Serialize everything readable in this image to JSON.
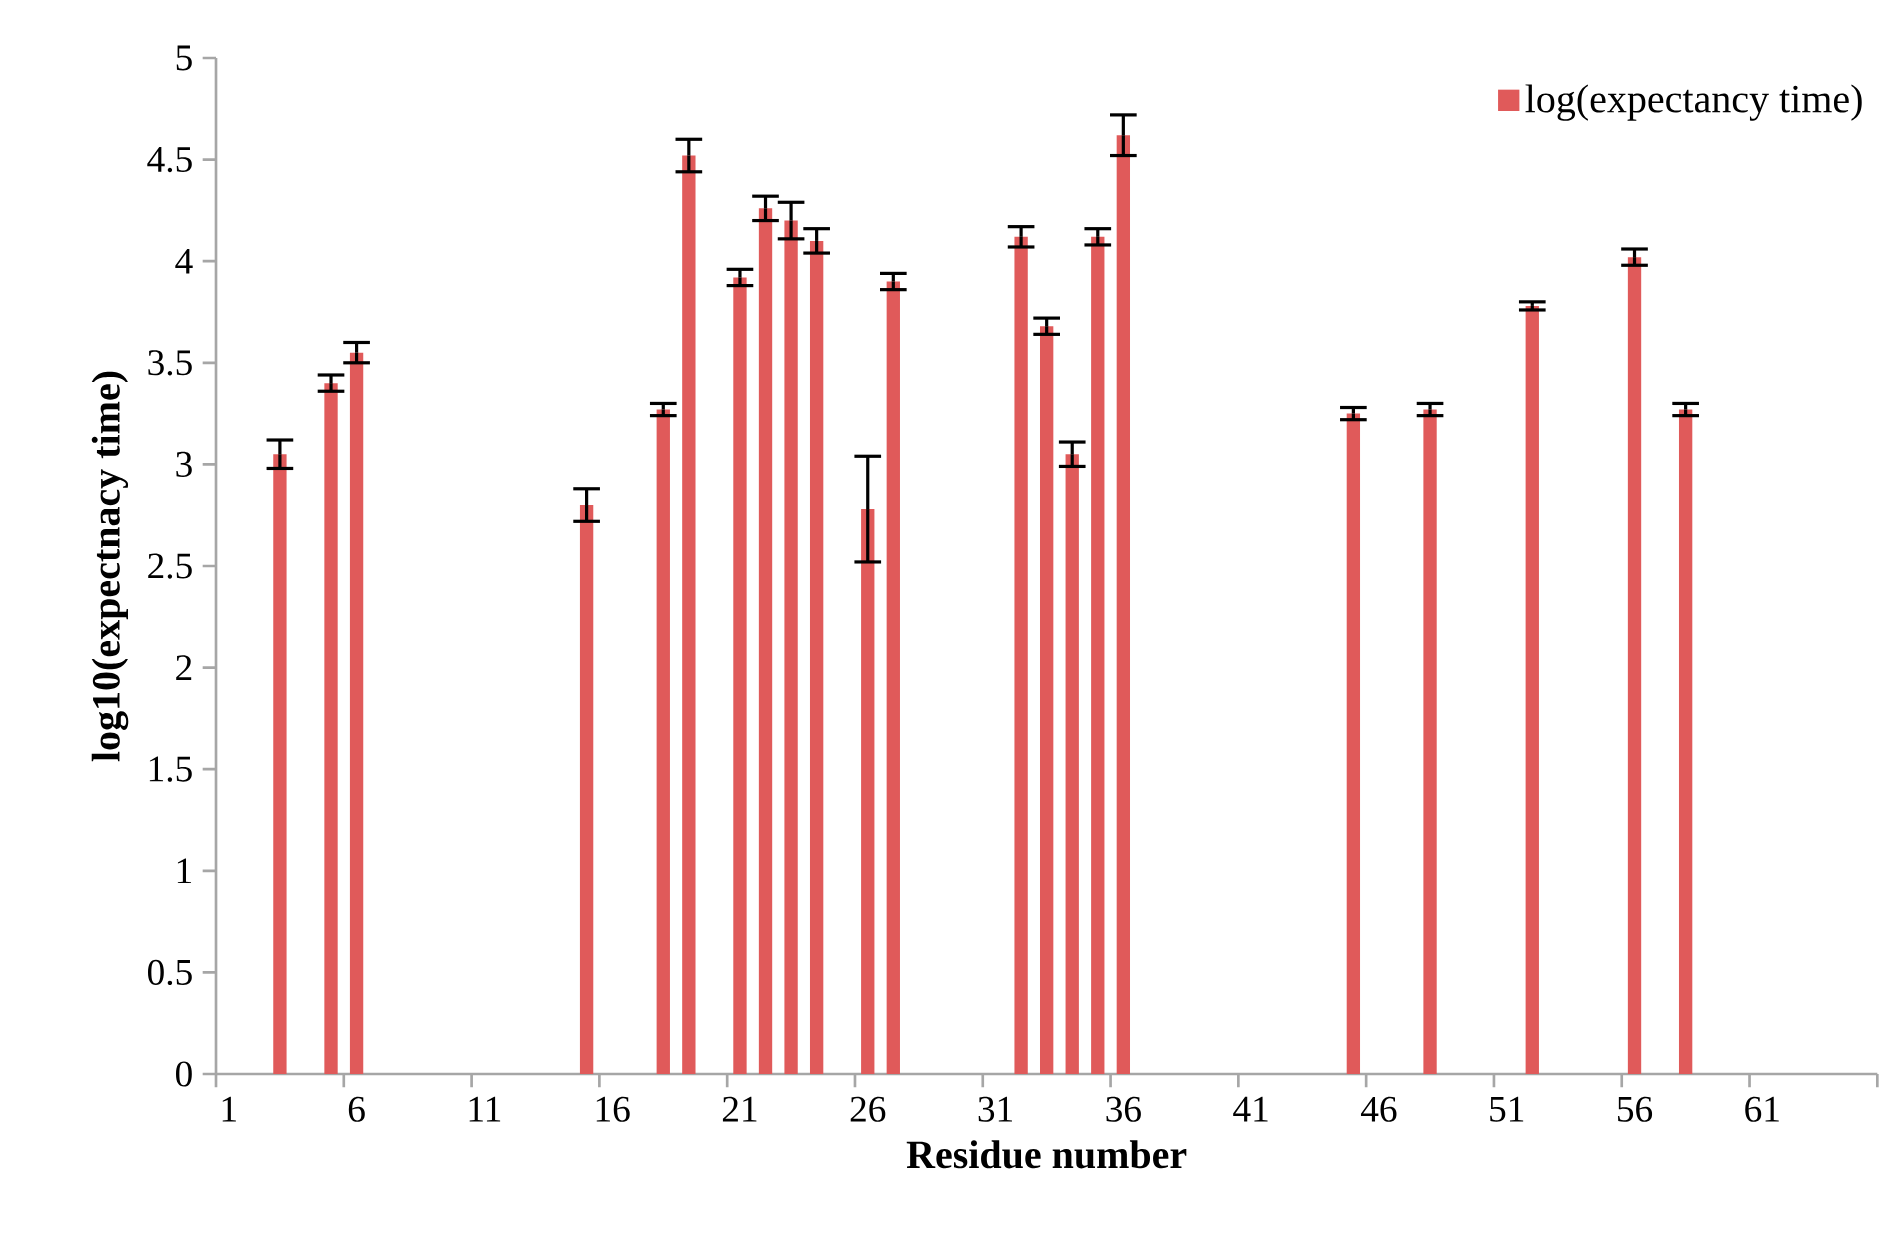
{
  "chart_data": {
    "type": "bar",
    "xlabel": "Residue number",
    "ylabel": "log10(expectnacy time)",
    "categories": [
      "1",
      null,
      null,
      null,
      null,
      "6",
      null,
      null,
      null,
      null,
      "11",
      null,
      null,
      null,
      null,
      "16",
      null,
      null,
      null,
      null,
      "21",
      null,
      null,
      null,
      null,
      "26",
      null,
      null,
      null,
      null,
      "31",
      null,
      null,
      null,
      null,
      "36",
      null,
      null,
      null,
      null,
      "41",
      null,
      null,
      null,
      null,
      "46",
      null,
      null,
      null,
      null,
      "51",
      null,
      null,
      null,
      null,
      "56",
      null,
      null,
      null,
      null,
      "61",
      null,
      null,
      null,
      null
    ],
    "series": [
      {
        "name": "log(expectancy time)",
        "color": "#e05a5a",
        "values": [
          null,
          null,
          3.05,
          null,
          3.4,
          3.55,
          null,
          null,
          null,
          null,
          null,
          null,
          null,
          null,
          2.8,
          null,
          null,
          3.27,
          4.52,
          null,
          3.92,
          4.26,
          4.2,
          4.1,
          null,
          2.78,
          3.9,
          null,
          null,
          null,
          null,
          4.12,
          3.68,
          3.05,
          4.12,
          4.62,
          null,
          null,
          null,
          null,
          null,
          null,
          null,
          null,
          3.25,
          null,
          null,
          3.27,
          null,
          null,
          null,
          3.78,
          null,
          null,
          null,
          4.02,
          null,
          3.27,
          null,
          null,
          null,
          null,
          null,
          null,
          null
        ],
        "errors": [
          null,
          null,
          0.07,
          null,
          0.04,
          0.05,
          null,
          null,
          null,
          null,
          null,
          null,
          null,
          null,
          0.08,
          null,
          null,
          0.03,
          0.08,
          null,
          0.04,
          0.06,
          0.09,
          0.06,
          null,
          0.26,
          0.04,
          null,
          null,
          null,
          null,
          0.05,
          0.04,
          0.06,
          0.04,
          0.1,
          null,
          null,
          null,
          null,
          null,
          null,
          null,
          null,
          0.03,
          null,
          null,
          0.03,
          null,
          null,
          null,
          0.02,
          null,
          null,
          null,
          0.04,
          null,
          0.03,
          null,
          null,
          null,
          null,
          null,
          null,
          null
        ]
      }
    ],
    "ylim": [
      0,
      5
    ],
    "yticks": [
      0,
      0.5,
      1,
      1.5,
      2,
      2.5,
      3,
      3.5,
      4,
      4.5,
      5
    ],
    "legend": "top right",
    "grid": false
  }
}
